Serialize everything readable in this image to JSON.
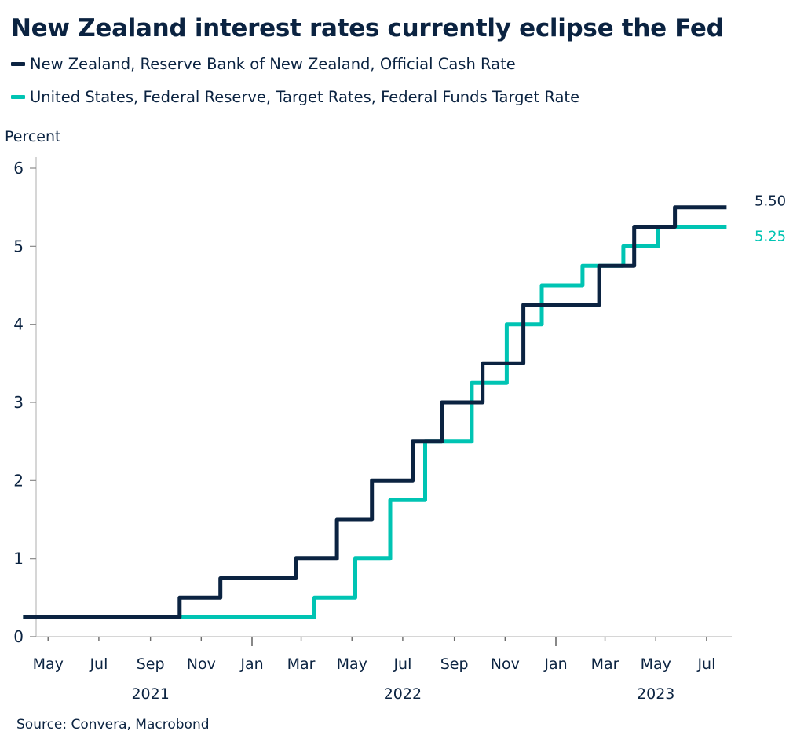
{
  "chart_data": {
    "type": "line",
    "style": "step",
    "title": "New Zealand interest rates currently eclipse the Fed",
    "ylabel": "Percent",
    "xlabel": "",
    "ylim": [
      0,
      6
    ],
    "yticks": [
      "0",
      "1",
      "2",
      "3",
      "4",
      "5",
      "6"
    ],
    "xlim": [
      "2021-04-20",
      "2023-08-20"
    ],
    "xticks": [
      {
        "date": "2021-05-01",
        "label": "May",
        "major": false
      },
      {
        "date": "2021-07-01",
        "label": "Jul",
        "major": false
      },
      {
        "date": "2021-09-01",
        "label": "Sep",
        "major": false
      },
      {
        "date": "2021-11-01",
        "label": "Nov",
        "major": false
      },
      {
        "date": "2022-01-01",
        "label": "Jan",
        "major": true
      },
      {
        "date": "2022-03-01",
        "label": "Mar",
        "major": false
      },
      {
        "date": "2022-05-01",
        "label": "May",
        "major": false
      },
      {
        "date": "2022-07-01",
        "label": "Jul",
        "major": false
      },
      {
        "date": "2022-09-01",
        "label": "Sep",
        "major": false
      },
      {
        "date": "2022-11-01",
        "label": "Nov",
        "major": false
      },
      {
        "date": "2023-01-01",
        "label": "Jan",
        "major": true
      },
      {
        "date": "2023-03-01",
        "label": "Mar",
        "major": false
      },
      {
        "date": "2023-05-01",
        "label": "May",
        "major": false
      },
      {
        "date": "2023-07-01",
        "label": "Jul",
        "major": false
      }
    ],
    "year_labels": [
      {
        "date": "2021-09-01",
        "label": "2021"
      },
      {
        "date": "2022-07-01",
        "label": "2022"
      },
      {
        "date": "2023-05-01",
        "label": "2023"
      }
    ],
    "grid": false,
    "legend_position": "top-left",
    "series": [
      {
        "name": "New Zealand, Reserve Bank of New Zealand, Official Cash Rate",
        "color": "#0b2341",
        "end_label": "5.50",
        "points": [
          [
            "2021-04-01",
            0.25
          ],
          [
            "2021-10-06",
            0.5
          ],
          [
            "2021-11-24",
            0.75
          ],
          [
            "2022-02-23",
            1.0
          ],
          [
            "2022-04-13",
            1.5
          ],
          [
            "2022-05-25",
            2.0
          ],
          [
            "2022-07-13",
            2.5
          ],
          [
            "2022-08-17",
            3.0
          ],
          [
            "2022-10-05",
            3.5
          ],
          [
            "2022-11-23",
            4.25
          ],
          [
            "2023-02-22",
            4.75
          ],
          [
            "2023-04-05",
            5.25
          ],
          [
            "2023-05-24",
            5.5
          ],
          [
            "2023-07-25",
            5.5
          ]
        ]
      },
      {
        "name": "United States, Federal Reserve, Target Rates, Federal Funds Target Rate",
        "color": "#00c4b3",
        "end_label": "5.25",
        "points": [
          [
            "2021-04-01",
            0.25
          ],
          [
            "2022-03-17",
            0.5
          ],
          [
            "2022-05-05",
            1.0
          ],
          [
            "2022-06-16",
            1.75
          ],
          [
            "2022-07-28",
            2.5
          ],
          [
            "2022-09-22",
            3.25
          ],
          [
            "2022-11-03",
            4.0
          ],
          [
            "2022-12-15",
            4.5
          ],
          [
            "2023-02-02",
            4.75
          ],
          [
            "2023-03-23",
            5.0
          ],
          [
            "2023-05-04",
            5.25
          ],
          [
            "2023-07-25",
            5.25
          ]
        ]
      }
    ],
    "source": "Source: Convera, Macrobond"
  }
}
